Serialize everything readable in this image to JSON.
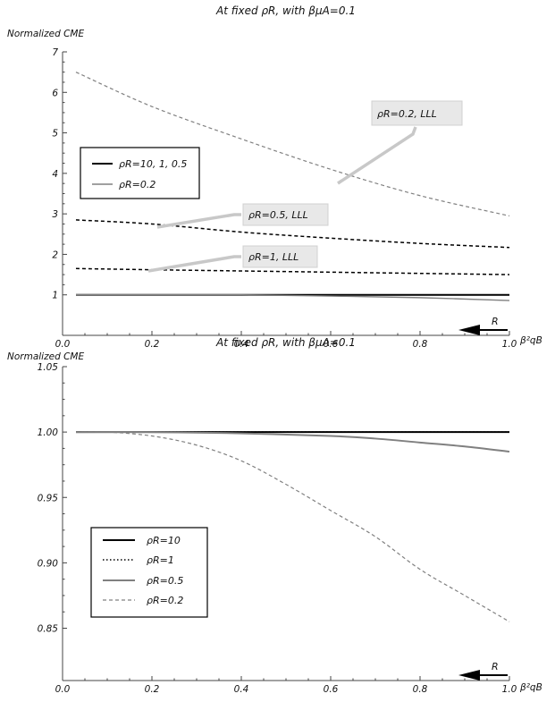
{
  "chart_data": [
    {
      "type": "line",
      "title": "At fixed ρR, with βμA=0.1",
      "ylabel": "Normalized CME",
      "xlabel": "β²qB",
      "xlim": [
        0,
        1
      ],
      "ylim": [
        0,
        7
      ],
      "xticks": [
        "0.0",
        "0.2",
        "0.4",
        "0.6",
        "0.8",
        "1.0"
      ],
      "yticks": [
        "1",
        "2",
        "3",
        "4",
        "5",
        "6",
        "7"
      ],
      "arrow_label": "R",
      "legend": [
        {
          "label": "ρR=10, 1, 0.5",
          "color": "#000000",
          "style": "solid"
        },
        {
          "label": "ρR=0.2",
          "color": "#808080",
          "style": "solid"
        }
      ],
      "series": [
        {
          "style": "solid",
          "color": "#000000",
          "width": 2,
          "x": [
            0.03,
            0.2,
            0.4,
            0.6,
            0.8,
            1.0
          ],
          "y": [
            1.0,
            1.0,
            1.0,
            1.0,
            1.0,
            1.0
          ]
        },
        {
          "style": "solid",
          "color": "#808080",
          "width": 1.4,
          "x": [
            0.03,
            0.2,
            0.4,
            0.6,
            0.8,
            1.0
          ],
          "y": [
            1.0,
            1.0,
            1.0,
            0.97,
            0.93,
            0.86
          ]
        },
        {
          "style": "dashed",
          "color": "#808080",
          "width": 1.2,
          "x": [
            0.03,
            0.2,
            0.4,
            0.6,
            0.8,
            1.0
          ],
          "y": [
            6.5,
            5.65,
            4.85,
            4.1,
            3.45,
            2.95
          ]
        },
        {
          "style": "dashed",
          "color": "#000000",
          "width": 1.5,
          "x": [
            0.03,
            0.2,
            0.4,
            0.6,
            0.8,
            1.0
          ],
          "y": [
            2.85,
            2.75,
            2.55,
            2.4,
            2.27,
            2.17
          ]
        },
        {
          "style": "dashed",
          "color": "#000000",
          "width": 1.5,
          "x": [
            0.03,
            0.2,
            0.4,
            0.6,
            0.8,
            1.0
          ],
          "y": [
            1.65,
            1.62,
            1.59,
            1.56,
            1.53,
            1.5
          ]
        }
      ],
      "annotations": [
        {
          "text": "ρR=0.2, LLL",
          "x": 0.69,
          "y": 3.8
        },
        {
          "text": "ρR=0.5, LLL",
          "x": 0.23,
          "y": 2.72
        },
        {
          "text": "ρR=1, LLL",
          "x": 0.22,
          "y": 1.62
        }
      ]
    },
    {
      "type": "line",
      "title": "At fixed ρR, with βμA=0.1",
      "ylabel": "Normalized CME",
      "xlabel": "β²qB",
      "xlim": [
        0,
        1
      ],
      "ylim": [
        0.81,
        1.05
      ],
      "xticks": [
        "0.0",
        "0.2",
        "0.4",
        "0.6",
        "0.8",
        "1.0"
      ],
      "yticks": [
        "0.85",
        "0.90",
        "0.95",
        "1.00",
        "1.05"
      ],
      "arrow_label": "R",
      "legend": [
        {
          "label": "ρR=10",
          "color": "#000000",
          "style": "solid"
        },
        {
          "label": "ρR=1",
          "color": "#000000",
          "style": "dotted"
        },
        {
          "label": "ρR=0.5",
          "color": "#808080",
          "style": "solid"
        },
        {
          "label": "ρR=0.2",
          "color": "#808080",
          "style": "dashed"
        }
      ],
      "series": [
        {
          "name": "ρR=10",
          "style": "solid",
          "color": "#000000",
          "width": 2,
          "x": [
            0.03,
            0.2,
            0.4,
            0.6,
            0.8,
            1.0
          ],
          "y": [
            1.0,
            1.0,
            1.0,
            1.0,
            1.0,
            1.0
          ]
        },
        {
          "name": "ρR=1",
          "style": "dotted",
          "color": "#000000",
          "width": 1.5,
          "x": [
            0.03,
            0.2,
            0.4,
            0.6,
            0.8,
            1.0
          ],
          "y": [
            1.0,
            1.0,
            1.0,
            1.0,
            1.0,
            1.0
          ]
        },
        {
          "name": "ρR=0.5",
          "style": "solid",
          "color": "#808080",
          "width": 2,
          "x": [
            0.03,
            0.2,
            0.4,
            0.6,
            0.7,
            0.8,
            0.9,
            1.0
          ],
          "y": [
            1.0,
            1.0,
            0.999,
            0.997,
            0.995,
            0.992,
            0.989,
            0.985
          ]
        },
        {
          "name": "ρR=0.2",
          "style": "dashed",
          "color": "#808080",
          "width": 1.2,
          "x": [
            0.03,
            0.1,
            0.2,
            0.3,
            0.4,
            0.5,
            0.6,
            0.7,
            0.8,
            0.9,
            1.0
          ],
          "y": [
            1.0,
            1.0,
            0.997,
            0.99,
            0.978,
            0.96,
            0.94,
            0.92,
            0.895,
            0.875,
            0.855
          ]
        }
      ]
    }
  ]
}
